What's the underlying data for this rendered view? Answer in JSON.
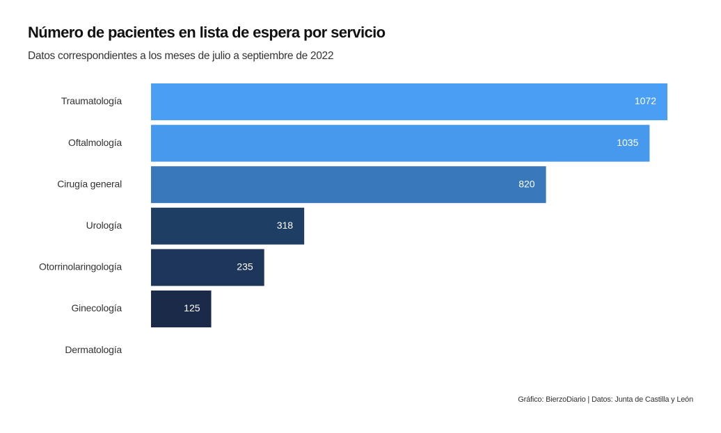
{
  "chart_data": {
    "type": "bar",
    "orientation": "horizontal",
    "title": "Número de pacientes en lista de espera por servicio",
    "subtitle": "Datos correspondientes a los meses de julio a septiembre de 2022",
    "caption": "Gráfico: BierzoDiario | Datos: Junta de Castilla y León",
    "categories": [
      "Traumatología",
      "Oftalmología",
      "Cirugía general",
      "Urología",
      "Otorrinolaringología",
      "Ginecología",
      "Dermatología"
    ],
    "values": [
      1072,
      1035,
      820,
      318,
      235,
      125,
      0
    ],
    "value_labels": [
      "1072",
      "1035",
      "820",
      "318",
      "235",
      "125",
      ""
    ],
    "colors": [
      "#4A9FF5",
      "#4699EC",
      "#3878BB",
      "#1F3E63",
      "#1E3659",
      "#1A2A48",
      "#ffffff"
    ],
    "xlim": [
      0,
      1072
    ],
    "grid": false,
    "legend": "none"
  }
}
